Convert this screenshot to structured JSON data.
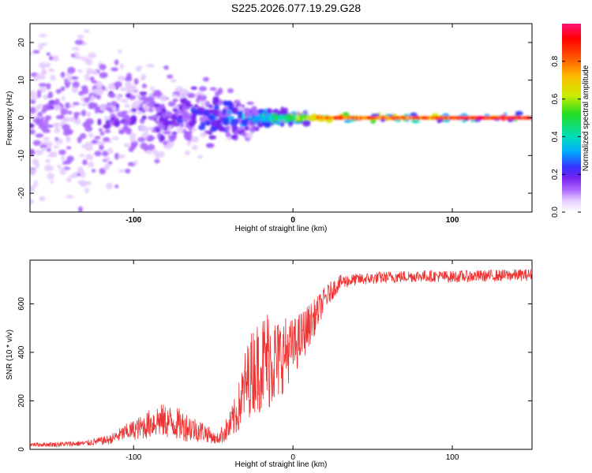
{
  "title": "S225.2026.077.19.29.G28",
  "chart_data": [
    {
      "type": "heatmap",
      "xlabel": "Height of straight line (km)",
      "ylabel": "Frequency (Hz)",
      "xlim": [
        -165,
        150
      ],
      "ylim": [
        -25,
        25
      ],
      "xticks": [
        -100,
        0,
        100
      ],
      "yticks": [
        -20,
        -10,
        0,
        10,
        20
      ],
      "colorbar": {
        "label": "Normalized spectral amplitude",
        "range": [
          0,
          1
        ],
        "ticks": [
          0.0,
          0.2,
          0.4,
          0.6,
          0.8
        ],
        "colors": [
          "#ffffff",
          "#e6ccff",
          "#aa66ff",
          "#7722ee",
          "#3333ff",
          "#00aaff",
          "#00ddbb",
          "#22dd22",
          "#ccee00",
          "#ffbb00",
          "#ff5500",
          "#ff0000",
          "#ff1177"
        ]
      },
      "description_points": [
        {
          "x": -130,
          "f_spread": 22,
          "amp": 0.15
        },
        {
          "x": -80,
          "f_spread": 10,
          "amp": 0.2
        },
        {
          "x": -50,
          "f_spread": 8,
          "amp": 0.3
        },
        {
          "x": -20,
          "f_spread": 3,
          "amp": 0.45
        },
        {
          "x": 0,
          "f_spread": 1.5,
          "amp": 0.6
        },
        {
          "x": 20,
          "f_spread": 1,
          "amp": 0.85
        },
        {
          "x": 150,
          "f_spread": 1,
          "amp": 0.95
        }
      ]
    },
    {
      "type": "line",
      "xlabel": "Height of straight line (km)",
      "ylabel": "SNR (10 * v/v)",
      "xlim": [
        -165,
        150
      ],
      "ylim": [
        0,
        780
      ],
      "xticks": [
        -100,
        0,
        100
      ],
      "yticks": [
        0,
        200,
        400,
        600
      ],
      "series": [
        {
          "name": "SNR",
          "color": "#ee3333",
          "x": [
            -165,
            -150,
            -130,
            -115,
            -105,
            -95,
            -85,
            -75,
            -65,
            -55,
            -48,
            -40,
            -35,
            -30,
            -25,
            -20,
            -15,
            -10,
            -5,
            0,
            5,
            10,
            15,
            20,
            25,
            30,
            40,
            60,
            80,
            100,
            120,
            150
          ],
          "y": [
            20,
            20,
            25,
            40,
            70,
            90,
            120,
            110,
            90,
            70,
            40,
            90,
            150,
            260,
            330,
            350,
            380,
            360,
            400,
            420,
            460,
            510,
            560,
            620,
            660,
            690,
            700,
            710,
            715,
            712,
            715,
            720
          ],
          "noise": [
            8,
            10,
            12,
            20,
            35,
            50,
            70,
            70,
            60,
            40,
            20,
            60,
            90,
            150,
            180,
            200,
            220,
            180,
            150,
            120,
            110,
            90,
            70,
            50,
            40,
            30,
            25,
            25,
            25,
            25,
            25,
            25
          ]
        }
      ]
    }
  ]
}
